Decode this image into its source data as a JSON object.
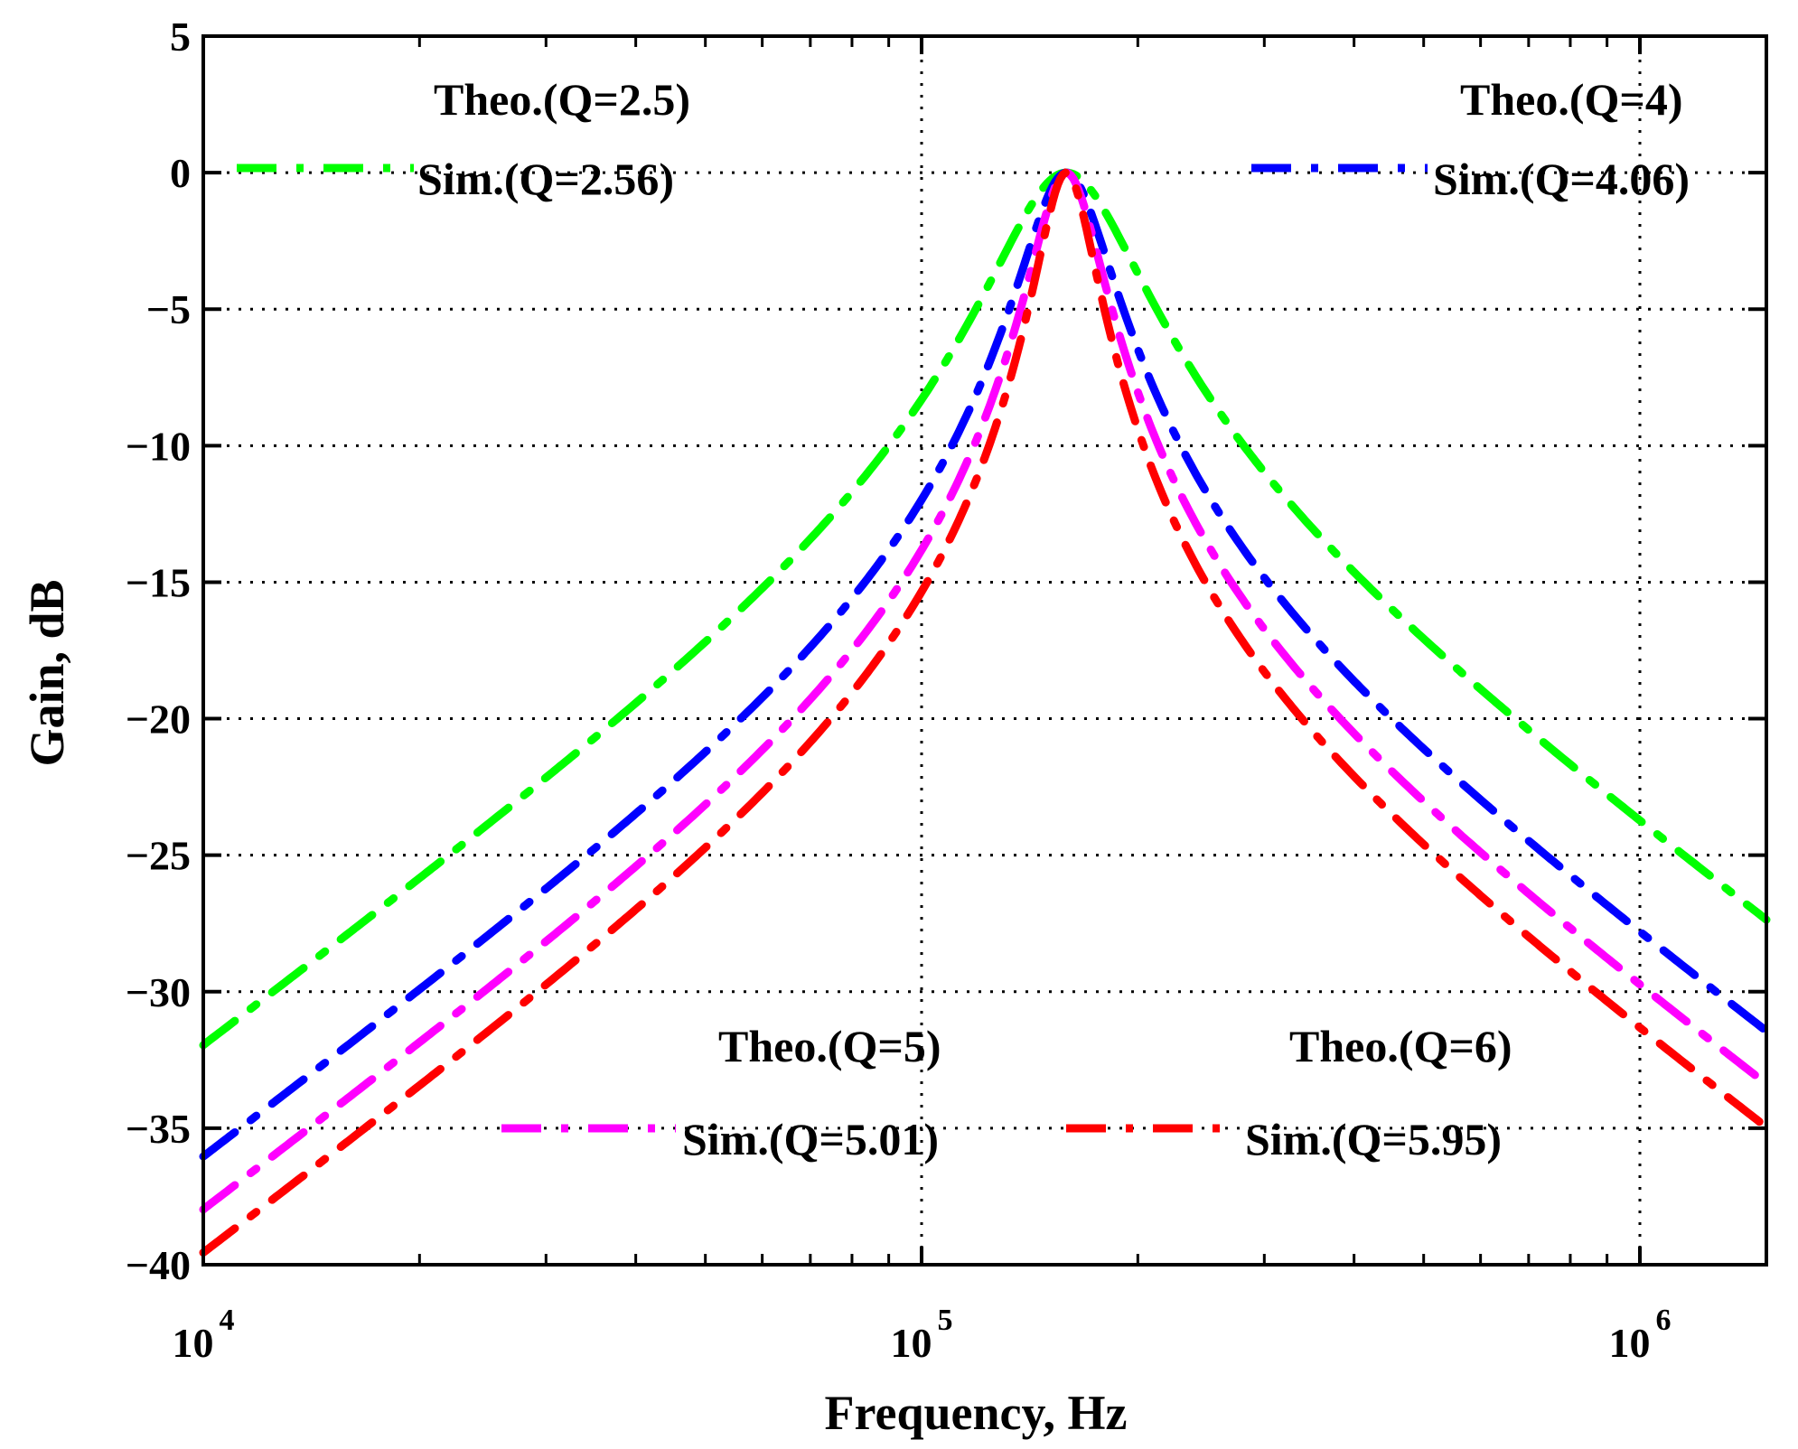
{
  "chart_data": {
    "type": "line",
    "title": "",
    "xlabel": "Frequency, Hz",
    "ylabel": "Gain, dB",
    "xscale": "log",
    "xlim": [
      10000,
      1500000
    ],
    "ylim": [
      -40,
      5
    ],
    "grid": true,
    "center_frequency": 159000,
    "x_ticks": [
      {
        "value": 10000,
        "base": "10",
        "exp": "4"
      },
      {
        "value": 100000,
        "base": "10",
        "exp": "5"
      },
      {
        "value": 1000000,
        "base": "10",
        "exp": "6"
      }
    ],
    "y_ticks": [
      {
        "value": 5,
        "label": "5"
      },
      {
        "value": 0,
        "label": "0"
      },
      {
        "value": -5,
        "label": "−5"
      },
      {
        "value": -10,
        "label": "−10"
      },
      {
        "value": -15,
        "label": "−15"
      },
      {
        "value": -20,
        "label": "−20"
      },
      {
        "value": -25,
        "label": "−25"
      },
      {
        "value": -30,
        "label": "−30"
      },
      {
        "value": -35,
        "label": "−35"
      },
      {
        "value": -40,
        "label": "−40"
      }
    ],
    "series": [
      {
        "name": "Q=2.5",
        "theo_label": "Theo.(Q=2.5)",
        "sim_label": "Sim.(Q=2.56)",
        "q": 2.5,
        "color": "#00ff00",
        "legend": "top-left"
      },
      {
        "name": "Q=4",
        "theo_label": "Theo.(Q=4)",
        "sim_label": "Sim.(Q=4.06)",
        "q": 4,
        "color": "#0000ff",
        "legend": "top-right"
      },
      {
        "name": "Q=5",
        "theo_label": "Theo.(Q=5)",
        "sim_label": "Sim.(Q=5.01)",
        "q": 5,
        "color": "#ff00ff",
        "legend": "bottom-center"
      },
      {
        "name": "Q=6",
        "theo_label": "Theo.(Q=6)",
        "sim_label": "Sim.(Q=5.95)",
        "q": 6,
        "color": "#ff0000",
        "legend": "bottom-right"
      }
    ]
  }
}
